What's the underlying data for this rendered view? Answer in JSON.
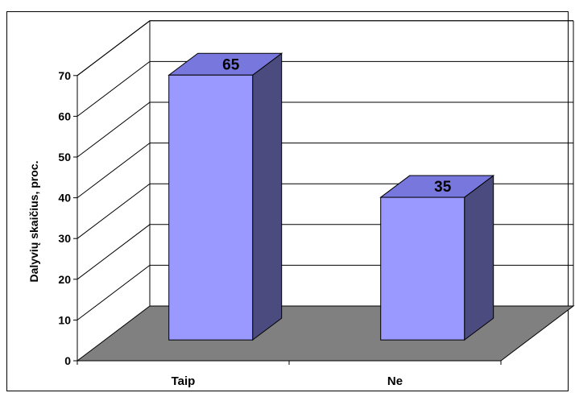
{
  "chart_data": {
    "type": "bar",
    "categories": [
      "Taip",
      "Ne"
    ],
    "values": [
      65,
      35
    ],
    "data_labels": [
      "65",
      "35"
    ],
    "ylabel": "Dalyvių skaičius, proc.",
    "xlabel": "",
    "ylim": [
      0,
      70
    ],
    "yticks": [
      0,
      10,
      20,
      30,
      40,
      50,
      60,
      70
    ],
    "grid": true,
    "style": "3d-column",
    "colors": {
      "bar_front": "#9999ff",
      "bar_top": "#7777dd",
      "bar_side": "#4b4b7f",
      "floor": "#808080",
      "gridline": "#000000"
    }
  }
}
